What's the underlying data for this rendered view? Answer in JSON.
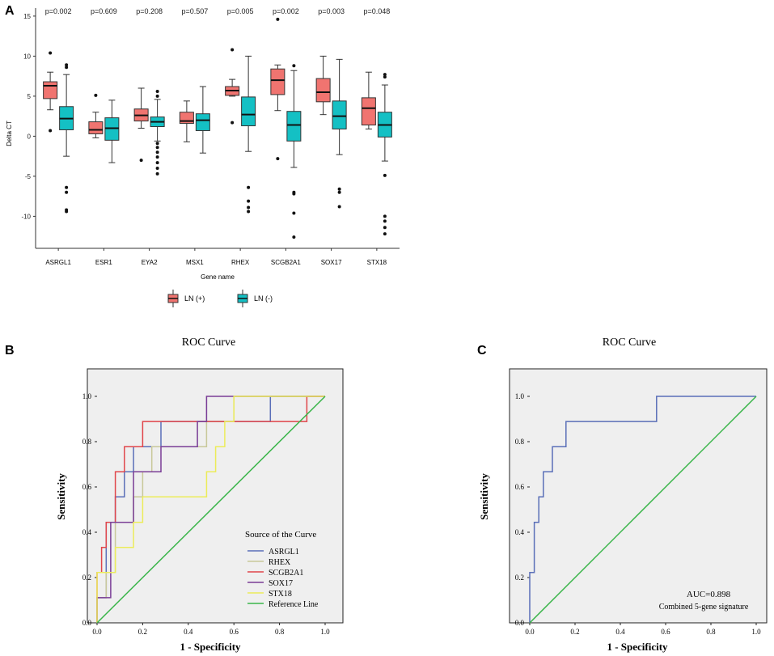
{
  "panels": {
    "a": {
      "label": "A"
    },
    "b": {
      "label": "B"
    },
    "c": {
      "label": "C"
    }
  },
  "chart_data": [
    {
      "type": "boxplot",
      "panel": "A",
      "xlabel": "Gene name",
      "ylabel": "Delta CT",
      "ylim": [
        -14,
        16
      ],
      "yticks": [
        -10,
        -5,
        0,
        5,
        10,
        15
      ],
      "categories": [
        "ASRGL1",
        "ESR1",
        "EYA2",
        "MSX1",
        "RHEX",
        "SCGB2A1",
        "SOX17",
        "STX18"
      ],
      "pvalues": [
        "p=0.002",
        "p=0.609",
        "p=0.208",
        "p=0.507",
        "p=0.005",
        "p=0.002",
        "p=0.003",
        "p=0.048"
      ],
      "legend": [
        {
          "name": "LN (+)",
          "color": "#f07470"
        },
        {
          "name": "LN (-)",
          "color": "#14c0c4"
        }
      ],
      "series": [
        {
          "name": "LN (+)",
          "color": "#f07470",
          "boxes": [
            {
              "min": 3.3,
              "q1": 4.7,
              "median": 6.3,
              "q3": 6.8,
              "max": 8.0,
              "outliers": [
                10.4,
                0.7
              ]
            },
            {
              "min": -0.2,
              "q1": 0.3,
              "median": 0.8,
              "q3": 1.8,
              "max": 3.0,
              "outliers": [
                5.1
              ]
            },
            {
              "min": 1.0,
              "q1": 1.9,
              "median": 2.6,
              "q3": 3.4,
              "max": 6.0,
              "outliers": [
                -3.0
              ]
            },
            {
              "min": -0.7,
              "q1": 1.6,
              "median": 1.9,
              "q3": 3.0,
              "max": 4.4,
              "outliers": []
            },
            {
              "min": 5.0,
              "q1": 5.1,
              "median": 5.7,
              "q3": 6.2,
              "max": 7.1,
              "outliers": [
                10.8,
                1.7
              ]
            },
            {
              "min": 3.2,
              "q1": 5.2,
              "median": 7.0,
              "q3": 8.4,
              "max": 8.9,
              "outliers": [
                14.6,
                -2.8
              ]
            },
            {
              "min": 2.7,
              "q1": 4.3,
              "median": 5.5,
              "q3": 7.2,
              "max": 10.0,
              "outliers": []
            },
            {
              "min": 0.9,
              "q1": 1.4,
              "median": 3.5,
              "q3": 4.8,
              "max": 8.0,
              "outliers": []
            }
          ]
        },
        {
          "name": "LN (-)",
          "color": "#14c0c4",
          "boxes": [
            {
              "min": -2.5,
              "q1": 0.8,
              "median": 2.2,
              "q3": 3.7,
              "max": 7.7,
              "outliers": [
                8.6,
                8.9,
                -6.4,
                -7.0,
                -9.2,
                -9.4
              ]
            },
            {
              "min": -3.3,
              "q1": -0.5,
              "median": 1.0,
              "q3": 2.3,
              "max": 4.5,
              "outliers": []
            },
            {
              "min": -0.6,
              "q1": 1.2,
              "median": 1.8,
              "q3": 2.4,
              "max": 4.6,
              "outliers": [
                5.0,
                5.6,
                -0.9,
                -1.4,
                -2.0,
                -2.6,
                -3.3,
                -4.0,
                -4.7
              ]
            },
            {
              "min": -2.1,
              "q1": 0.7,
              "median": 2.0,
              "q3": 2.8,
              "max": 6.2,
              "outliers": []
            },
            {
              "min": -1.9,
              "q1": 1.3,
              "median": 2.7,
              "q3": 4.9,
              "max": 10.0,
              "outliers": [
                -6.4,
                -8.1,
                -8.9,
                -9.4
              ]
            },
            {
              "min": -3.9,
              "q1": -0.6,
              "median": 1.4,
              "q3": 3.1,
              "max": 8.2,
              "outliers": [
                8.8,
                -7.0,
                -7.2,
                -9.6,
                -12.6
              ]
            },
            {
              "min": -2.3,
              "q1": 0.9,
              "median": 2.5,
              "q3": 4.4,
              "max": 9.6,
              "outliers": [
                -6.6,
                -7.0,
                -8.8
              ]
            },
            {
              "min": -3.1,
              "q1": -0.1,
              "median": 1.4,
              "q3": 3.0,
              "max": 6.4,
              "outliers": [
                7.7,
                7.4,
                -4.9,
                -10.0,
                -10.6,
                -11.4,
                -12.2
              ]
            }
          ]
        }
      ]
    },
    {
      "type": "line",
      "panel": "B",
      "title": "ROC Curve",
      "xlabel": "1 - Specificity",
      "ylabel": "Sensitivity",
      "xlim": [
        0,
        1
      ],
      "ylim": [
        0,
        1
      ],
      "ticks": [
        "0.0",
        "0.2",
        "0.4",
        "0.6",
        "0.8",
        "1.0"
      ],
      "legend_title": "Source of the Curve",
      "series": [
        {
          "name": "ASRGL1",
          "color": "#5a6fb8",
          "points": [
            [
              0,
              0
            ],
            [
              0,
              0.111
            ],
            [
              0.04,
              0.111
            ],
            [
              0.04,
              0.444
            ],
            [
              0.08,
              0.444
            ],
            [
              0.08,
              0.556
            ],
            [
              0.12,
              0.556
            ],
            [
              0.12,
              0.667
            ],
            [
              0.16,
              0.667
            ],
            [
              0.16,
              0.778
            ],
            [
              0.28,
              0.778
            ],
            [
              0.28,
              0.889
            ],
            [
              0.76,
              0.889
            ],
            [
              0.76,
              1.0
            ],
            [
              1,
              1
            ]
          ]
        },
        {
          "name": "RHEX",
          "color": "#c8c89a",
          "points": [
            [
              0,
              0
            ],
            [
              0,
              0.111
            ],
            [
              0.04,
              0.111
            ],
            [
              0.04,
              0.222
            ],
            [
              0.08,
              0.222
            ],
            [
              0.08,
              0.444
            ],
            [
              0.16,
              0.444
            ],
            [
              0.16,
              0.556
            ],
            [
              0.2,
              0.556
            ],
            [
              0.2,
              0.667
            ],
            [
              0.24,
              0.667
            ],
            [
              0.24,
              0.778
            ],
            [
              0.48,
              0.778
            ],
            [
              0.48,
              0.889
            ],
            [
              0.6,
              0.889
            ],
            [
              0.6,
              1.0
            ],
            [
              1,
              1
            ]
          ]
        },
        {
          "name": "SCGB2A1",
          "color": "#e0454a",
          "points": [
            [
              0,
              0
            ],
            [
              0,
              0.222
            ],
            [
              0.02,
              0.222
            ],
            [
              0.02,
              0.333
            ],
            [
              0.04,
              0.333
            ],
            [
              0.04,
              0.444
            ],
            [
              0.08,
              0.444
            ],
            [
              0.08,
              0.667
            ],
            [
              0.12,
              0.667
            ],
            [
              0.12,
              0.778
            ],
            [
              0.2,
              0.778
            ],
            [
              0.2,
              0.889
            ],
            [
              0.92,
              0.889
            ],
            [
              0.92,
              1.0
            ],
            [
              1,
              1
            ]
          ]
        },
        {
          "name": "SOX17",
          "color": "#7a3d96",
          "points": [
            [
              0,
              0
            ],
            [
              0,
              0.111
            ],
            [
              0.06,
              0.111
            ],
            [
              0.06,
              0.444
            ],
            [
              0.16,
              0.444
            ],
            [
              0.16,
              0.667
            ],
            [
              0.28,
              0.667
            ],
            [
              0.28,
              0.778
            ],
            [
              0.44,
              0.778
            ],
            [
              0.44,
              0.889
            ],
            [
              0.48,
              0.889
            ],
            [
              0.48,
              1.0
            ],
            [
              1,
              1
            ]
          ]
        },
        {
          "name": "STX18",
          "color": "#ecec5a",
          "points": [
            [
              0,
              0
            ],
            [
              0,
              0.222
            ],
            [
              0.08,
              0.222
            ],
            [
              0.08,
              0.333
            ],
            [
              0.16,
              0.333
            ],
            [
              0.16,
              0.444
            ],
            [
              0.2,
              0.444
            ],
            [
              0.2,
              0.556
            ],
            [
              0.48,
              0.556
            ],
            [
              0.48,
              0.667
            ],
            [
              0.52,
              0.667
            ],
            [
              0.52,
              0.778
            ],
            [
              0.56,
              0.778
            ],
            [
              0.56,
              0.889
            ],
            [
              0.6,
              0.889
            ],
            [
              0.6,
              1.0
            ],
            [
              1,
              1
            ]
          ]
        },
        {
          "name": "Reference Line",
          "color": "#3ab54a",
          "points": [
            [
              0,
              0
            ],
            [
              1,
              1
            ]
          ]
        }
      ]
    },
    {
      "type": "line",
      "panel": "C",
      "title": "ROC Curve",
      "xlabel": "1 - Specificity",
      "ylabel": "Sensitivity",
      "xlim": [
        0,
        1
      ],
      "ylim": [
        0,
        1
      ],
      "ticks": [
        "0.0",
        "0.2",
        "0.4",
        "0.6",
        "0.8",
        "1.0"
      ],
      "annotations": [
        "AUC=0.898",
        "Combined 5-gene signature"
      ],
      "series": [
        {
          "name": "Combined 5-gene signature",
          "color": "#5a6fb8",
          "points": [
            [
              0,
              0
            ],
            [
              0,
              0.222
            ],
            [
              0.02,
              0.222
            ],
            [
              0.02,
              0.444
            ],
            [
              0.04,
              0.444
            ],
            [
              0.04,
              0.556
            ],
            [
              0.06,
              0.556
            ],
            [
              0.06,
              0.667
            ],
            [
              0.1,
              0.667
            ],
            [
              0.1,
              0.778
            ],
            [
              0.16,
              0.778
            ],
            [
              0.16,
              0.889
            ],
            [
              0.56,
              0.889
            ],
            [
              0.56,
              1.0
            ],
            [
              1,
              1
            ]
          ]
        },
        {
          "name": "Reference Line",
          "color": "#3ab54a",
          "points": [
            [
              0,
              0
            ],
            [
              1,
              1
            ]
          ]
        }
      ]
    }
  ]
}
